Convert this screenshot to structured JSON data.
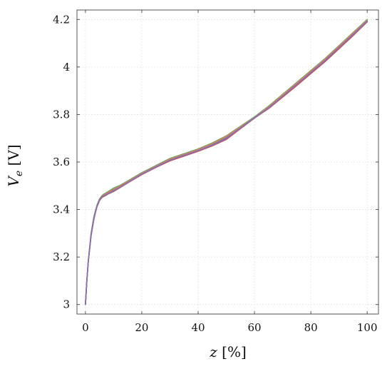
{
  "chart_data": {
    "type": "line",
    "xlabel": "z [%]",
    "ylabel": "V_e [V]",
    "xlim": [
      -3,
      104
    ],
    "ylim": [
      2.96,
      4.24
    ],
    "xticks": [
      "0",
      "20",
      "40",
      "60",
      "80",
      "100"
    ],
    "yticks": [
      "3",
      "3.2",
      "3.4",
      "3.6",
      "3.8",
      "4",
      "4.2"
    ],
    "grid": true,
    "legend": "none",
    "series": [
      {
        "color": "#4c72b0",
        "x": [
          0,
          0.5,
          1,
          2,
          3,
          4,
          5,
          6,
          7,
          8,
          10,
          12,
          15,
          20,
          25,
          30,
          35,
          40,
          45,
          50,
          55,
          60,
          65,
          70,
          75,
          80,
          85,
          90,
          95,
          100
        ],
        "y": [
          3.0,
          3.1,
          3.18,
          3.29,
          3.36,
          3.41,
          3.44,
          3.455,
          3.46,
          3.47,
          3.48,
          3.495,
          3.515,
          3.55,
          3.58,
          3.61,
          3.63,
          3.65,
          3.675,
          3.705,
          3.745,
          3.785,
          3.83,
          3.88,
          3.93,
          3.98,
          4.03,
          4.085,
          4.14,
          4.195
        ]
      },
      {
        "color": "#55a868",
        "x": [
          0,
          0.5,
          1,
          2,
          3,
          4,
          5,
          6,
          7,
          8,
          10,
          12,
          15,
          20,
          25,
          30,
          35,
          40,
          45,
          50,
          55,
          60,
          65,
          70,
          75,
          80,
          85,
          90,
          95,
          100
        ],
        "y": [
          3.0,
          3.1,
          3.18,
          3.3,
          3.37,
          3.415,
          3.445,
          3.46,
          3.468,
          3.475,
          3.49,
          3.5,
          3.52,
          3.555,
          3.585,
          3.615,
          3.635,
          3.655,
          3.68,
          3.71,
          3.75,
          3.79,
          3.835,
          3.885,
          3.935,
          3.985,
          4.035,
          4.09,
          4.145,
          4.2
        ]
      },
      {
        "color": "#dd8452",
        "x": [
          0,
          0.5,
          1,
          2,
          3,
          4,
          5,
          6,
          7,
          8,
          10,
          12,
          15,
          20,
          25,
          30,
          35,
          40,
          45,
          50,
          55,
          60,
          65,
          70,
          75,
          80,
          85,
          90,
          95,
          100
        ],
        "y": [
          3.0,
          3.1,
          3.18,
          3.295,
          3.365,
          3.412,
          3.442,
          3.457,
          3.464,
          3.472,
          3.485,
          3.497,
          3.517,
          3.552,
          3.582,
          3.612,
          3.632,
          3.652,
          3.677,
          3.707,
          3.747,
          3.787,
          3.832,
          3.882,
          3.932,
          3.982,
          4.032,
          4.087,
          4.142,
          4.197
        ]
      },
      {
        "color": "#c44e52",
        "x": [
          0,
          0.5,
          1,
          2,
          3,
          4,
          5,
          6,
          7,
          8,
          10,
          12,
          15,
          20,
          25,
          30,
          35,
          40,
          45,
          50,
          55,
          60,
          65,
          70,
          75,
          80,
          85,
          90,
          95,
          100
        ],
        "y": [
          3.0,
          3.1,
          3.18,
          3.29,
          3.36,
          3.408,
          3.438,
          3.452,
          3.458,
          3.465,
          3.476,
          3.49,
          3.512,
          3.547,
          3.577,
          3.605,
          3.625,
          3.645,
          3.668,
          3.695,
          3.74,
          3.785,
          3.825,
          3.873,
          3.922,
          3.972,
          4.022,
          4.077,
          4.132,
          4.19
        ]
      },
      {
        "color": "#da4d8d",
        "x": [
          0,
          0.5,
          1,
          2,
          3,
          4,
          5,
          6,
          7,
          8,
          10,
          12,
          15,
          20,
          25,
          30,
          35,
          40,
          45,
          50,
          55,
          60,
          65,
          70,
          75,
          80,
          85,
          90,
          95,
          100
        ],
        "y": [
          3.0,
          3.1,
          3.18,
          3.292,
          3.362,
          3.41,
          3.44,
          3.455,
          3.461,
          3.468,
          3.479,
          3.492,
          3.513,
          3.548,
          3.578,
          3.607,
          3.627,
          3.647,
          3.67,
          3.698,
          3.742,
          3.786,
          3.827,
          3.876,
          3.926,
          3.976,
          4.026,
          4.081,
          4.136,
          4.192
        ]
      },
      {
        "color": "#8172b3",
        "x": [
          0,
          0.5,
          1,
          2,
          3,
          4,
          5,
          6,
          7,
          8,
          10,
          12,
          15,
          20,
          25,
          30,
          35,
          40,
          45,
          50,
          55,
          60,
          65,
          70,
          75,
          80,
          85,
          90,
          95,
          100
        ],
        "y": [
          3.0,
          3.1,
          3.18,
          3.29,
          3.36,
          3.41,
          3.44,
          3.454,
          3.46,
          3.467,
          3.478,
          3.492,
          3.514,
          3.549,
          3.579,
          3.608,
          3.628,
          3.648,
          3.671,
          3.7,
          3.743,
          3.786,
          3.828,
          3.877,
          3.927,
          3.977,
          4.027,
          4.082,
          4.137,
          4.193
        ]
      }
    ]
  }
}
